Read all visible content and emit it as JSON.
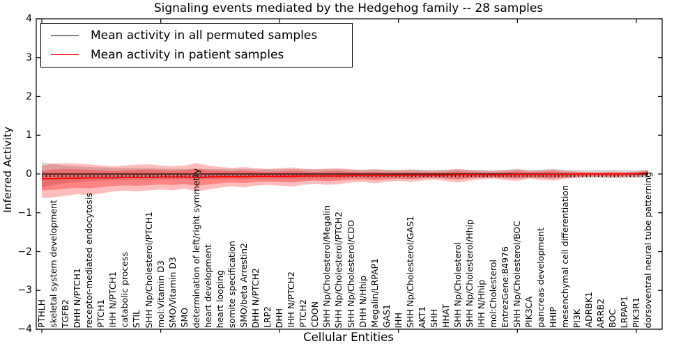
{
  "title": "Signaling events mediated by the Hedgehog family -- 28 samples",
  "axes": {
    "xlabel": "Cellular Entities",
    "ylabel": "Inferred Activity",
    "y_ticks": [
      "4",
      "3",
      "2",
      "1",
      "0",
      "−1",
      "−2",
      "−3",
      "−4"
    ],
    "y_tick_values": [
      4,
      3,
      2,
      1,
      0,
      -1,
      -2,
      -3,
      -4
    ]
  },
  "legend": {
    "items": [
      {
        "label": "Mean activity in all permuted samples",
        "color": "#000000"
      },
      {
        "label": "Mean activity in patient samples",
        "color": "#ff0000"
      }
    ]
  },
  "colors": {
    "permuted_line": "#000000",
    "patient_line": "#ff0000",
    "permuted_band": "rgba(0,0,0,0.16)",
    "patient_band": "rgba(255,0,0,0.26)",
    "patient_band_inner": "rgba(255,0,0,0.30)",
    "frame": "#000000"
  },
  "chart_data": {
    "type": "line",
    "title": "Signaling events mediated by the Hedgehog family -- 28 samples",
    "xlabel": "Cellular Entities",
    "ylabel": "Inferred Activity",
    "ylim": [
      -4,
      4
    ],
    "grid": false,
    "legend_position": "upper left",
    "categories": [
      "PTHLH",
      "skeletal system development",
      "TGFB2",
      "DHH N/PTCH1",
      "receptor-mediated endocytosis",
      "PTCH1",
      "IHH N/PTCH1",
      "catabolic process",
      "STIL",
      "SHH Np/Cholesterol/PTCH1",
      "mol:Vitamin D3",
      "SMO/Vitamin D3",
      "SMO",
      "determination of left/right symmetry",
      "heart development",
      "heart looping",
      "somite specification",
      "SMO/beta Arrestin2",
      "DHH N/PTCH2",
      "LRP2",
      "DHH",
      "IHH N/PTCH2",
      "PTCH2",
      "CDON",
      "SHH Np/Cholesterol/Megalin",
      "SHH Np/Cholesterol/PTCH2",
      "SHH Np/Cholesterol/CDO",
      "DHH N/Hhip",
      "Megalin/LRPAP1",
      "GAS1",
      "IHH",
      "SHH Np/Cholesterol/GAS1",
      "AKT1",
      "SHH",
      "HHAT",
      "SHH Np/Cholesterol",
      "SHH Np/Cholesterol/Hhip",
      "IHH N/Hhip",
      "mol:Cholesterol",
      "EntrezGene:84976",
      "SHH Np/Cholesterol/BOC",
      "PIK3CA",
      "pancreas development",
      "HHIP",
      "mesenchymal cell differentiation",
      "PI3K",
      "ADRBK1",
      "ARRB2",
      "BOC",
      "LRPAP1",
      "PIK3R1",
      "dorsoventral neural tube patterning"
    ],
    "series": [
      {
        "name": "Mean activity in all permuted samples",
        "color": "#000000",
        "values": [
          0,
          0,
          0,
          0,
          0,
          0,
          0,
          0,
          0,
          0,
          0,
          0,
          0,
          0,
          0,
          0,
          0,
          0,
          0,
          0,
          0,
          0,
          0,
          0,
          0,
          0,
          0,
          0,
          0,
          0,
          0,
          0,
          0,
          0,
          0,
          0,
          0,
          0,
          0,
          0,
          0,
          0,
          0,
          0,
          0,
          0,
          0,
          0,
          0,
          0,
          0,
          0
        ]
      },
      {
        "name": "Mean activity in patient samples",
        "color": "#ff0000",
        "values": [
          -0.12,
          -0.12,
          -0.11,
          -0.11,
          -0.1,
          -0.1,
          -0.1,
          -0.09,
          -0.09,
          -0.09,
          -0.08,
          -0.08,
          -0.08,
          -0.09,
          -0.08,
          -0.07,
          -0.07,
          -0.07,
          -0.06,
          -0.06,
          -0.06,
          -0.06,
          -0.05,
          -0.05,
          -0.05,
          -0.05,
          -0.04,
          -0.04,
          -0.04,
          -0.04,
          -0.03,
          -0.03,
          -0.03,
          -0.03,
          -0.03,
          -0.02,
          -0.02,
          -0.02,
          -0.02,
          -0.02,
          -0.01,
          -0.01,
          -0.01,
          -0.01,
          -0.01,
          0.0,
          0.0,
          0.0,
          0.0,
          0.0,
          0.01,
          0.03
        ]
      }
    ],
    "bands": [
      {
        "name": "permuted samples range",
        "color": "gray",
        "upper": [
          0.3,
          0.26,
          0.22,
          0.2,
          0.18,
          0.17,
          0.16,
          0.16,
          0.15,
          0.15,
          0.14,
          0.14,
          0.13,
          0.14,
          0.13,
          0.13,
          0.12,
          0.13,
          0.12,
          0.12,
          0.12,
          0.13,
          0.12,
          0.12,
          0.12,
          0.12,
          0.11,
          0.11,
          0.12,
          0.11,
          0.11,
          0.12,
          0.11,
          0.11,
          0.11,
          0.12,
          0.11,
          0.11,
          0.1,
          0.11,
          0.12,
          0.11,
          0.11,
          0.12,
          0.11,
          0.1,
          0.1,
          0.1,
          0.11,
          0.1,
          0.1,
          0.11
        ],
        "lower": [
          -0.35,
          -0.28,
          -0.24,
          -0.21,
          -0.19,
          -0.17,
          -0.16,
          -0.16,
          -0.15,
          -0.15,
          -0.14,
          -0.14,
          -0.13,
          -0.14,
          -0.13,
          -0.13,
          -0.12,
          -0.13,
          -0.12,
          -0.12,
          -0.12,
          -0.13,
          -0.12,
          -0.12,
          -0.12,
          -0.12,
          -0.11,
          -0.11,
          -0.12,
          -0.11,
          -0.11,
          -0.12,
          -0.11,
          -0.11,
          -0.11,
          -0.12,
          -0.11,
          -0.11,
          -0.1,
          -0.11,
          -0.12,
          -0.11,
          -0.11,
          -0.12,
          -0.11,
          -0.1,
          -0.1,
          -0.1,
          -0.11,
          -0.1,
          -0.1,
          -0.11
        ]
      },
      {
        "name": "patient samples range",
        "color": "red",
        "upper": [
          0.22,
          0.27,
          0.28,
          0.27,
          0.25,
          0.22,
          0.2,
          0.22,
          0.24,
          0.25,
          0.22,
          0.2,
          0.22,
          0.28,
          0.22,
          0.18,
          0.16,
          0.18,
          0.15,
          0.13,
          0.15,
          0.17,
          0.14,
          0.12,
          0.14,
          0.15,
          0.12,
          0.1,
          0.12,
          0.1,
          0.09,
          0.11,
          0.09,
          0.08,
          0.1,
          0.13,
          0.1,
          0.08,
          0.07,
          0.1,
          0.12,
          0.08,
          0.1,
          0.12,
          0.08,
          0.06,
          0.05,
          0.05,
          0.06,
          0.05,
          0.06,
          0.1
        ],
        "lower": [
          -0.62,
          -0.6,
          -0.56,
          -0.52,
          -0.55,
          -0.5,
          -0.45,
          -0.43,
          -0.45,
          -0.42,
          -0.4,
          -0.42,
          -0.38,
          -0.45,
          -0.4,
          -0.35,
          -0.32,
          -0.35,
          -0.3,
          -0.28,
          -0.3,
          -0.32,
          -0.28,
          -0.25,
          -0.28,
          -0.26,
          -0.22,
          -0.2,
          -0.24,
          -0.2,
          -0.18,
          -0.2,
          -0.17,
          -0.15,
          -0.18,
          -0.22,
          -0.17,
          -0.14,
          -0.12,
          -0.16,
          -0.18,
          -0.12,
          -0.15,
          -0.17,
          -0.12,
          -0.1,
          -0.08,
          -0.08,
          -0.1,
          -0.08,
          -0.08,
          -0.05
        ]
      }
    ]
  }
}
